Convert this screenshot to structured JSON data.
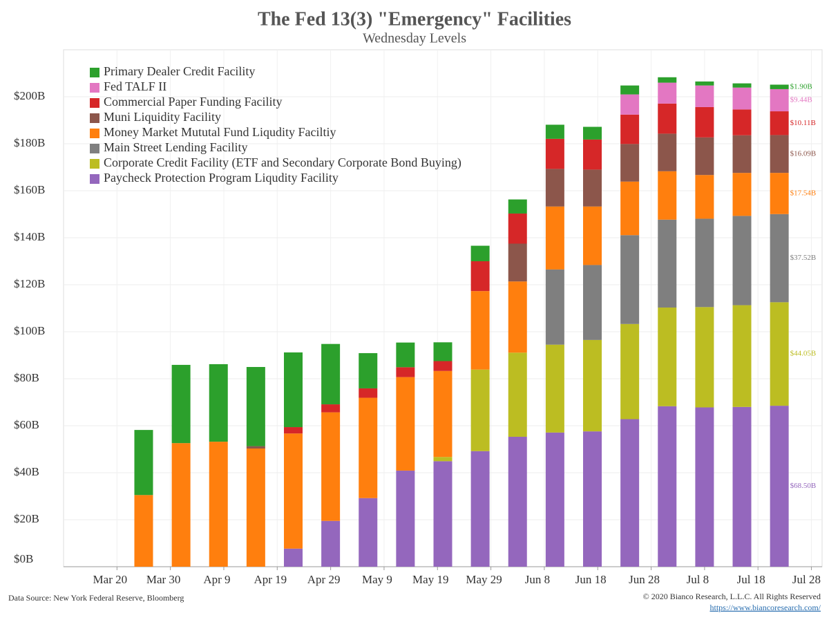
{
  "chart_data": {
    "type": "stacked_bar",
    "title": "The Fed 13(3) \"Emergency\" Facilities",
    "subtitle": "Wednesday Levels",
    "source": "Data Source: New York Federal Reserve, Bloomberg",
    "copyright": "© 2020 Bianco Research, L.L.C. All Rights Reserved",
    "url": "https://www.biancoresearch.com/",
    "x": [
      "Mar 25",
      "Apr 1",
      "Apr 8",
      "Apr 15",
      "Apr 22",
      "Apr 29",
      "May 6",
      "May 13",
      "May 20",
      "May 27",
      "Jun 3",
      "Jun 10",
      "Jun 17",
      "Jun 24",
      "Jul 1",
      "Jul 8",
      "Jul 15",
      "Jul 22"
    ],
    "xlim": [
      "Mar 10",
      "Jul 30"
    ],
    "xticks": [
      "Mar 20",
      "Mar 30",
      "Apr 9",
      "Apr 19",
      "Apr 29",
      "May 9",
      "May 19",
      "May 29",
      "Jun 8",
      "Jun 18",
      "Jun 28",
      "Jul 8",
      "Jul 18",
      "Jul 28"
    ],
    "ylim": [
      0,
      220
    ],
    "yticks": [
      {
        "value": 0,
        "label": "$0B"
      },
      {
        "value": 20,
        "label": "$20B"
      },
      {
        "value": 40,
        "label": "$40B"
      },
      {
        "value": 60,
        "label": "$60B"
      },
      {
        "value": 80,
        "label": "$80B"
      },
      {
        "value": 100,
        "label": "$100B"
      },
      {
        "value": 120,
        "label": "$120B"
      },
      {
        "value": 140,
        "label": "$140B"
      },
      {
        "value": 160,
        "label": "$160B"
      },
      {
        "value": 180,
        "label": "$180B"
      },
      {
        "value": 200,
        "label": "$200B"
      }
    ],
    "grid": true,
    "legend": "top-left",
    "series": [
      {
        "name": "Primary Dealer Credit Facility",
        "color": "#2ca02c",
        "values": [
          27.7,
          33.3,
          33.0,
          33.7,
          31.8,
          25.7,
          15.0,
          10.5,
          8.0,
          6.6,
          6.0,
          6.0,
          5.4,
          3.8,
          2.3,
          1.7,
          1.8,
          1.9
        ],
        "value_labels": [
          null,
          null,
          null,
          null,
          null,
          null,
          null,
          null,
          null,
          null,
          null,
          null,
          null,
          null,
          null,
          null,
          null,
          "$1.90B"
        ]
      },
      {
        "name": "Fed TALF II",
        "color": "#e377c2",
        "values": [
          0,
          0,
          0,
          0,
          0,
          0,
          0,
          0,
          0,
          0,
          0,
          0,
          0,
          8.6,
          8.9,
          9.2,
          9.3,
          9.44
        ],
        "value_labels": [
          null,
          null,
          null,
          null,
          null,
          null,
          null,
          null,
          null,
          null,
          null,
          null,
          null,
          null,
          null,
          null,
          null,
          "$9.44B"
        ]
      },
      {
        "name": "Commercial Paper Funding Facility",
        "color": "#d62728",
        "values": [
          0,
          0,
          0,
          0,
          2.7,
          3.4,
          4.0,
          4.2,
          4.2,
          12.7,
          12.8,
          12.8,
          12.8,
          12.5,
          12.8,
          12.9,
          11.0,
          10.11
        ],
        "value_labels": [
          null,
          null,
          null,
          null,
          null,
          null,
          null,
          null,
          null,
          null,
          null,
          null,
          null,
          null,
          null,
          null,
          null,
          "$10.11B"
        ]
      },
      {
        "name": "Muni Liquidity Facility",
        "color": "#8c564b",
        "values": [
          0,
          0,
          0,
          1.0,
          0,
          0,
          0,
          0,
          0,
          0,
          16.1,
          16.0,
          15.7,
          16.0,
          16.0,
          16.0,
          16.0,
          16.09
        ],
        "value_labels": [
          null,
          null,
          null,
          null,
          null,
          null,
          null,
          null,
          null,
          null,
          null,
          null,
          null,
          null,
          null,
          null,
          null,
          "$16.09B"
        ]
      },
      {
        "name": "Money Market Mututal Fund Liqudity Faciltiy",
        "color": "#ff7f0e",
        "values": [
          30.5,
          52.6,
          53.2,
          50.3,
          49.0,
          46.2,
          42.7,
          39.8,
          36.6,
          33.4,
          30.3,
          26.8,
          24.9,
          22.8,
          20.6,
          18.6,
          18.3,
          17.54
        ],
        "value_labels": [
          null,
          null,
          null,
          null,
          null,
          null,
          null,
          null,
          null,
          null,
          null,
          null,
          null,
          null,
          null,
          null,
          null,
          "$17.54B"
        ]
      },
      {
        "name": "Main Street Lending Facility",
        "color": "#7f7f7f",
        "values": [
          0,
          0,
          0,
          0,
          0,
          0,
          0,
          0,
          0,
          0,
          0,
          32.0,
          31.9,
          37.8,
          37.4,
          37.6,
          38.0,
          37.52
        ],
        "value_labels": [
          null,
          null,
          null,
          null,
          null,
          null,
          null,
          null,
          null,
          null,
          null,
          null,
          null,
          null,
          null,
          null,
          null,
          "$37.52B"
        ]
      },
      {
        "name": "Corporate Credit Facility (ETF and Secondary Corporate Bond Buying)",
        "color": "#bcbd22",
        "values": [
          0,
          0,
          0,
          0,
          0,
          0,
          0,
          0,
          1.8,
          34.7,
          35.8,
          37.4,
          38.9,
          40.5,
          42.0,
          42.7,
          43.3,
          44.05
        ],
        "value_labels": [
          null,
          null,
          null,
          null,
          null,
          null,
          null,
          null,
          null,
          null,
          null,
          null,
          null,
          null,
          null,
          null,
          null,
          "$44.05B"
        ]
      },
      {
        "name": "Paycheck Protection Program Liqudity Facility",
        "color": "#9467bd",
        "values": [
          0,
          0,
          0,
          0,
          7.7,
          19.5,
          29.2,
          40.9,
          44.9,
          49.2,
          55.3,
          57.1,
          57.6,
          62.8,
          68.3,
          67.8,
          68.0,
          68.5
        ],
        "value_labels": [
          null,
          null,
          null,
          null,
          null,
          null,
          null,
          null,
          null,
          null,
          null,
          null,
          null,
          null,
          null,
          null,
          null,
          "$68.50B"
        ]
      }
    ]
  }
}
